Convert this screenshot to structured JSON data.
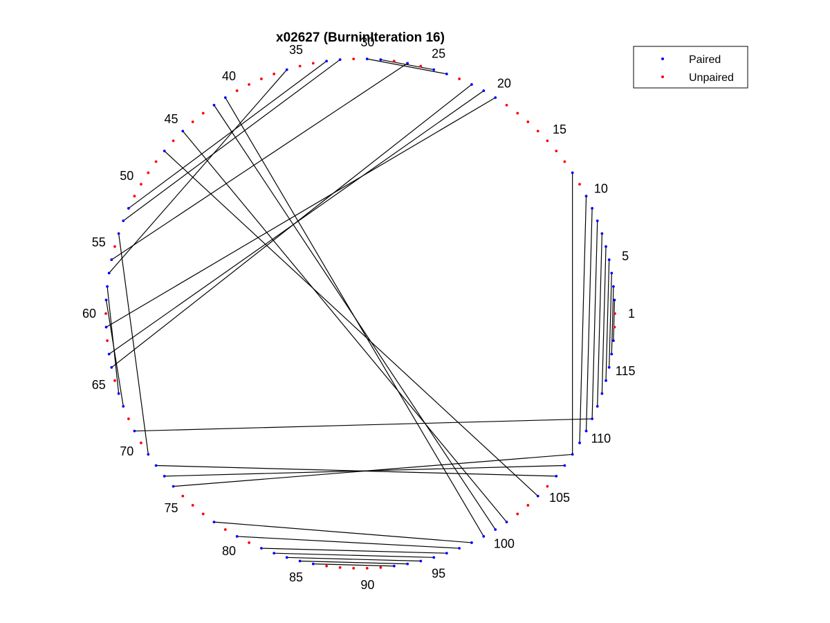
{
  "chart_data": {
    "type": "scatter",
    "title": "x02627 (BurninIteration 16)",
    "layout": "circular-arc-diagram",
    "n_positions": 118,
    "tick_labels": [
      "1",
      "5",
      "10",
      "15",
      "20",
      "25",
      "30",
      "35",
      "40",
      "45",
      "50",
      "55",
      "60",
      "65",
      "70",
      "75",
      "80",
      "85",
      "90",
      "95",
      "100",
      "105",
      "110",
      "115"
    ],
    "tick_positions": [
      1,
      5,
      10,
      15,
      20,
      25,
      30,
      35,
      40,
      45,
      50,
      55,
      60,
      65,
      70,
      75,
      80,
      85,
      90,
      95,
      100,
      105,
      110,
      115
    ],
    "series": [
      {
        "name": "Paired",
        "color": "#0000ff"
      },
      {
        "name": "Unpaired",
        "color": "#ff0000"
      }
    ],
    "pairs": [
      [
        2,
        117
      ],
      [
        3,
        116
      ],
      [
        4,
        115
      ],
      [
        5,
        114
      ],
      [
        6,
        113
      ],
      [
        7,
        112
      ],
      [
        8,
        111
      ],
      [
        9,
        110
      ],
      [
        10,
        109
      ],
      [
        12,
        108
      ],
      [
        20,
        61
      ],
      [
        21,
        63
      ],
      [
        22,
        64
      ],
      [
        24,
        30
      ],
      [
        25,
        29
      ],
      [
        27,
        56
      ],
      [
        32,
        53
      ],
      [
        33,
        52
      ],
      [
        36,
        57
      ],
      [
        41,
        99
      ],
      [
        42,
        100
      ],
      [
        45,
        101
      ],
      [
        47,
        104
      ],
      [
        54,
        71
      ],
      [
        58,
        66
      ],
      [
        59,
        67
      ],
      [
        69,
        111
      ],
      [
        72,
        106
      ],
      [
        73,
        107
      ],
      [
        74,
        108
      ],
      [
        78,
        98
      ],
      [
        80,
        97
      ],
      [
        82,
        96
      ],
      [
        83,
        95
      ],
      [
        84,
        94
      ],
      [
        85,
        93
      ],
      [
        86,
        92
      ]
    ],
    "legend_position": "top-right",
    "grid": false
  }
}
